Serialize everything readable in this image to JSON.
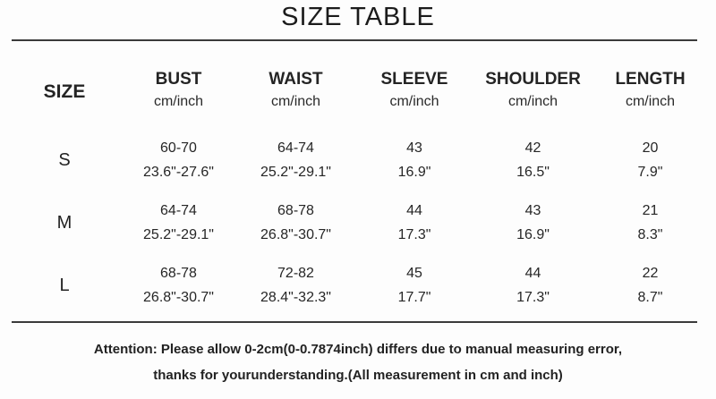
{
  "title": "SIZE TABLE",
  "colors": {
    "background": "#fdfdfd",
    "text": "#1f1f1f",
    "rule": "#3b3b3b"
  },
  "table": {
    "size_header": "SIZE",
    "unit": "cm/inch",
    "headers": [
      "BUST",
      "WAIST",
      "SLEEVE",
      "SHOULDER",
      "LENGTH"
    ],
    "rows": [
      {
        "size": "S",
        "bust": {
          "cm": "60-70",
          "inch": "23.6\"-27.6\""
        },
        "waist": {
          "cm": "64-74",
          "inch": "25.2\"-29.1\""
        },
        "sleeve": {
          "cm": "43",
          "inch": "16.9\""
        },
        "shoulder": {
          "cm": "42",
          "inch": "16.5\""
        },
        "length": {
          "cm": "20",
          "inch": "7.9\""
        }
      },
      {
        "size": "M",
        "bust": {
          "cm": "64-74",
          "inch": "25.2\"-29.1\""
        },
        "waist": {
          "cm": "68-78",
          "inch": "26.8\"-30.7\""
        },
        "sleeve": {
          "cm": "44",
          "inch": "17.3\""
        },
        "shoulder": {
          "cm": "43",
          "inch": "16.9\""
        },
        "length": {
          "cm": "21",
          "inch": "8.3\""
        }
      },
      {
        "size": "L",
        "bust": {
          "cm": "68-78",
          "inch": "26.8\"-30.7\""
        },
        "waist": {
          "cm": "72-82",
          "inch": "28.4\"-32.3\""
        },
        "sleeve": {
          "cm": "45",
          "inch": "17.7\""
        },
        "shoulder": {
          "cm": "44",
          "inch": "17.3\""
        },
        "length": {
          "cm": "22",
          "inch": "8.7\""
        }
      }
    ]
  },
  "note": {
    "line1": "Attention: Please allow 0-2cm(0-0.7874inch) differs due to manual measuring error,",
    "line2": "thanks for yourunderstanding.(All measurement in cm and inch)"
  },
  "chart_data": {
    "type": "table",
    "title": "SIZE TABLE",
    "columns": [
      "SIZE",
      "BUST cm/inch",
      "WAIST cm/inch",
      "SLEEVE cm/inch",
      "SHOULDER cm/inch",
      "LENGTH cm/inch"
    ],
    "rows": [
      [
        "S",
        "60-70 / 23.6\"-27.6\"",
        "64-74 / 25.2\"-29.1\"",
        "43 / 16.9\"",
        "42 / 16.5\"",
        "20 / 7.9\""
      ],
      [
        "M",
        "64-74 / 25.2\"-29.1\"",
        "68-78 / 26.8\"-30.7\"",
        "44 / 17.3\"",
        "43 / 16.9\"",
        "21 / 8.3\""
      ],
      [
        "L",
        "68-78 / 26.8\"-30.7\"",
        "72-82 / 28.4\"-32.3\"",
        "45 / 17.7\"",
        "44 / 17.3\"",
        "22 / 8.7\""
      ]
    ],
    "notes": [
      "Attention: Please allow 0-2cm(0-0.7874inch) differs due to manual measuring error,",
      "thanks for yourunderstanding.(All measurement in cm and inch)"
    ]
  }
}
